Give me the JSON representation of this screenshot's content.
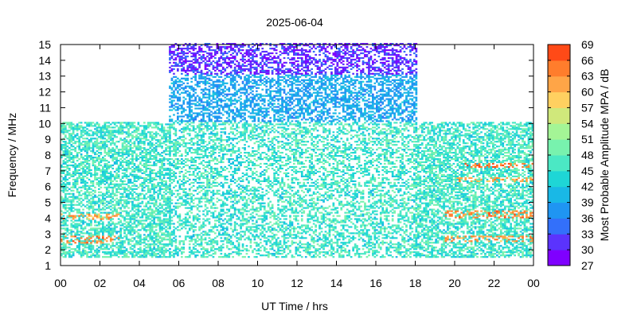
{
  "chart_data": {
    "type": "heatmap",
    "title": "2025-06-04",
    "xlabel": "UT Time / hrs",
    "ylabel": "Frequency / MHz",
    "colorbar_label": "Most Probable Amplitude MPA / dB",
    "xlim": [
      0,
      24
    ],
    "ylim": [
      1,
      15
    ],
    "x_ticks": [
      "00",
      "02",
      "04",
      "06",
      "08",
      "10",
      "12",
      "14",
      "16",
      "18",
      "20",
      "22",
      "00"
    ],
    "y_ticks": [
      "1",
      "2",
      "3",
      "4",
      "5",
      "6",
      "7",
      "8",
      "9",
      "10",
      "11",
      "12",
      "13",
      "14",
      "15"
    ],
    "colorbar_range": [
      27,
      69
    ],
    "colorbar_ticks": [
      "27",
      "30",
      "33",
      "36",
      "39",
      "42",
      "45",
      "48",
      "51",
      "54",
      "57",
      "60",
      "63",
      "66",
      "69"
    ],
    "colorbar_colors": [
      "#7f00ff",
      "#5b33fd",
      "#3370fa",
      "#1f95f2",
      "#19b8e6",
      "#1ed6d6",
      "#4be8c4",
      "#78f2ae",
      "#a4f596",
      "#d0e87b",
      "#ffd060",
      "#ffa547",
      "#ff7d2c",
      "#ff4a17",
      "#ff0000"
    ],
    "coverage": [
      {
        "x": [
          0,
          5.5
        ],
        "y": [
          1.5,
          10
        ],
        "note": ""
      },
      {
        "x": [
          5.5,
          18
        ],
        "y": [
          1.5,
          15
        ],
        "note": ""
      },
      {
        "x": [
          18,
          24
        ],
        "y": [
          1.5,
          10
        ],
        "note": ""
      }
    ],
    "features": [
      {
        "x": [
          0,
          3
        ],
        "y": [
          2.4,
          2.9
        ],
        "level": 62
      },
      {
        "x": [
          0,
          3
        ],
        "y": [
          3.9,
          4.3
        ],
        "level": 60
      },
      {
        "x": [
          19.5,
          24
        ],
        "y": [
          4.0,
          4.4
        ],
        "level": 62
      },
      {
        "x": [
          19.5,
          24
        ],
        "y": [
          2.5,
          2.9
        ],
        "level": 61
      },
      {
        "x": [
          20,
          24
        ],
        "y": [
          7.1,
          7.4
        ],
        "level": 64
      },
      {
        "x": [
          20,
          24
        ],
        "y": [
          6.2,
          6.5
        ],
        "level": 60
      },
      {
        "x": [
          5.5,
          18
        ],
        "y": [
          13,
          15
        ],
        "level": 29
      },
      {
        "x": [
          5.5,
          18
        ],
        "y": [
          10,
          13
        ],
        "level": 37
      },
      {
        "x": [
          8,
          9
        ],
        "y": [
          3,
          8
        ],
        "level": 42
      }
    ]
  }
}
